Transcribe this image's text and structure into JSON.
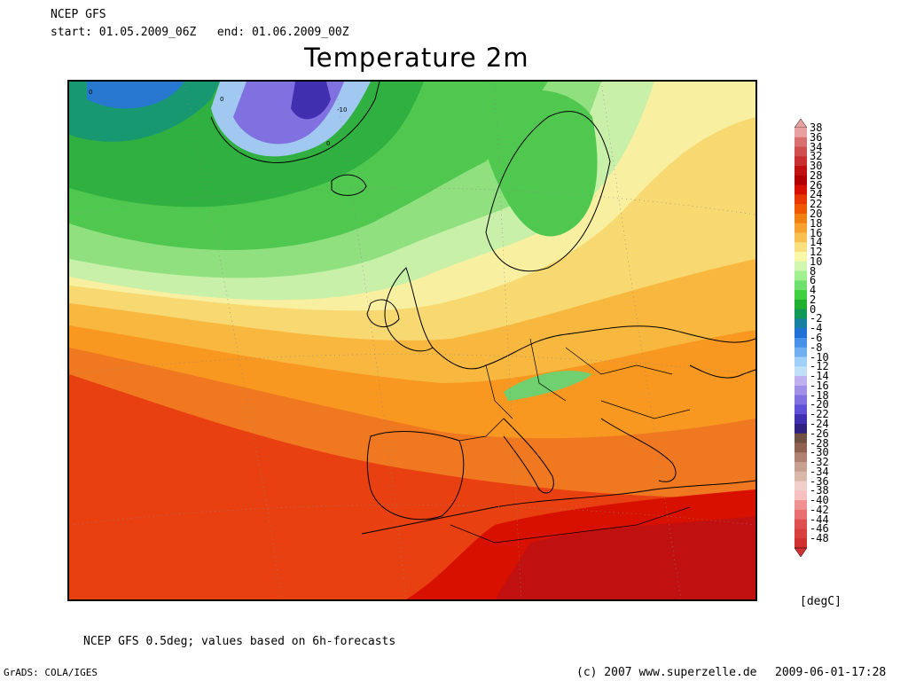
{
  "header": {
    "model": "NCEP GFS",
    "period": "start: 01.05.2009_06Z   end: 01.06.2009_00Z",
    "title": "Temperature 2m"
  },
  "legend": {
    "unit": "[degC]",
    "levels": [
      "38",
      "36",
      "34",
      "32",
      "30",
      "28",
      "26",
      "24",
      "22",
      "20",
      "18",
      "16",
      "14",
      "12",
      "10",
      "8",
      "6",
      "4",
      "2",
      "0",
      "-2",
      "-4",
      "-6",
      "-8",
      "-10",
      "-12",
      "-14",
      "-16",
      "-18",
      "-20",
      "-22",
      "-24",
      "-26",
      "-28",
      "-30",
      "-32",
      "-34",
      "-36",
      "-38",
      "-40",
      "-42",
      "-44",
      "-46",
      "-48"
    ],
    "colors": [
      "#e8a0a0",
      "#d87070",
      "#d05050",
      "#c83030",
      "#c01010",
      "#b00000",
      "#d81000",
      "#e83800",
      "#f05800",
      "#f08010",
      "#f8a030",
      "#f8c050",
      "#f8e080",
      "#f8f8a8",
      "#d0f8b0",
      "#a0f090",
      "#70e070",
      "#40d040",
      "#20b030",
      "#109858",
      "#1880a0",
      "#2070d8",
      "#4890e8",
      "#70b0f0",
      "#a0d0f8",
      "#c0e0f8",
      "#c0b0f0",
      "#a090e8",
      "#8070e0",
      "#6050d8",
      "#4030b0",
      "#302080",
      "#705040",
      "#906050",
      "#b08070",
      "#c8a090",
      "#d8b8a8",
      "#f0d0c8",
      "#f8c0c0",
      "#f09090",
      "#e87070",
      "#e05050",
      "#d84040",
      "#d03030"
    ],
    "contour_labels": [
      "0",
      "0",
      "-10",
      "0"
    ]
  },
  "footer": {
    "note": "NCEP GFS 0.5deg; values based on 6h-forecasts",
    "grads": "GrADS: COLA/IGES",
    "copyright": "(c) 2007 www.superzelle.de",
    "timestamp": "2009-06-01-17:28"
  }
}
